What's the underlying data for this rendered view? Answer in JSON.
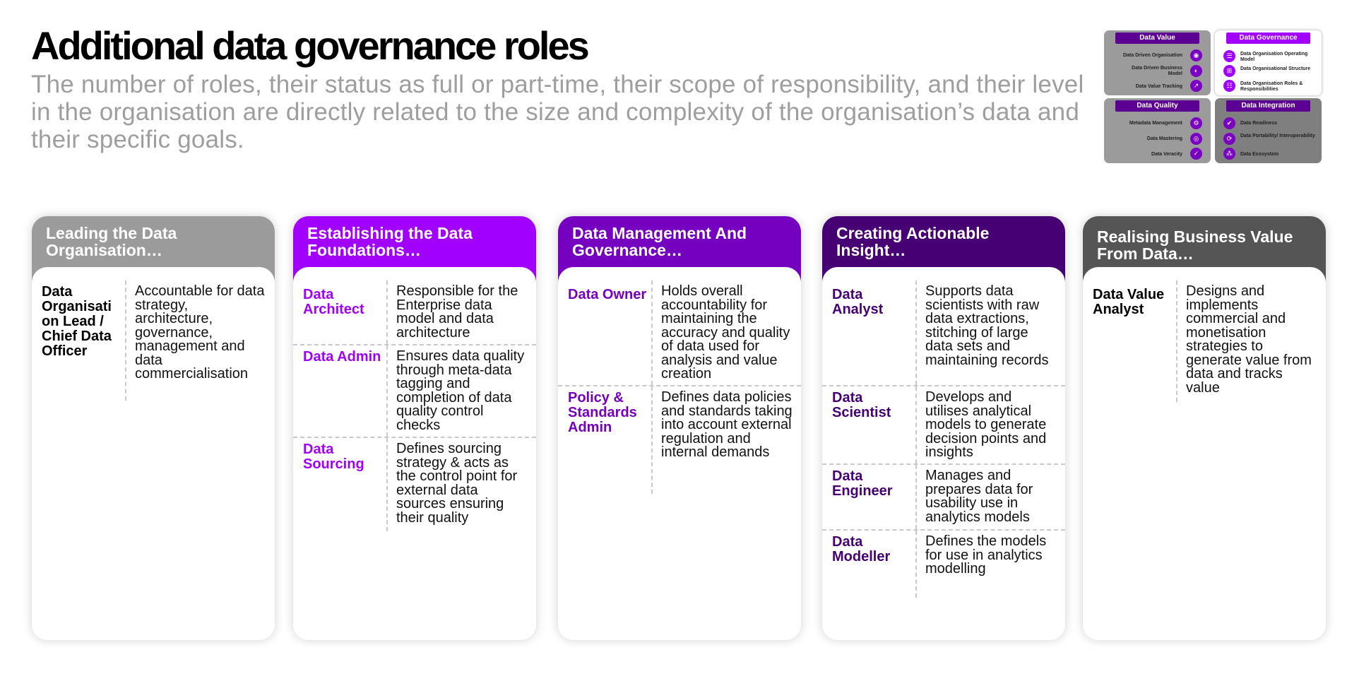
{
  "title": "Additional data governance roles",
  "subtitle": "The number of roles, their status as full or part-time, their scope of responsibility, and their level in the organisation are directly related to the size and complexity of the organisation’s data and their specific goals.",
  "colors": {
    "purple_bright": "#a100ff",
    "purple_mid": "#7500c0",
    "purple_dark": "#460073",
    "grey_light": "#9b9b9b",
    "grey_dark": "#555555"
  },
  "thumbnail": {
    "data_value": {
      "title": "Data Value",
      "items": [
        "Data Driven Organisation",
        "Data Driven Business Model",
        "Data Value Tracking"
      ]
    },
    "data_governance": {
      "title": "Data Governance",
      "items": [
        "Data Organisation Operating Model",
        "Data Organisational Structure",
        "Data Organisation Roles & Responsibilities"
      ]
    },
    "data_quality": {
      "title": "Data Quality",
      "items": [
        "Metadata Management",
        "Data Mastering",
        "Data Veracity"
      ]
    },
    "data_integration": {
      "title": "Data Integration",
      "items": [
        "Data Readiness",
        "Data Portability/ Interoperability",
        "Data Ecosystem"
      ]
    }
  },
  "columns": [
    {
      "header": "Leading the Data Organisation…",
      "roles": [
        {
          "name": "Data Organisati on Lead / Chief Data Officer",
          "desc": "Accountable for data strategy, architecture, governance, management and data commercialisation"
        }
      ]
    },
    {
      "header": "Establishing the Data Foundations…",
      "roles": [
        {
          "name": "Data Architect",
          "desc": "Responsible for the Enterprise data model and data architecture"
        },
        {
          "name": "Data Admin",
          "desc": "Ensures data quality through meta-data tagging and completion of data quality control checks"
        },
        {
          "name": "Data Sourcing",
          "desc": "Defines sourcing strategy & acts as the control point for external data sources ensuring their quality"
        }
      ]
    },
    {
      "header": "Data Management And Governance…",
      "roles": [
        {
          "name": "Data Owner",
          "desc": "Holds overall accountability for maintaining the accuracy and quality of data used for analysis and value creation"
        },
        {
          "name": "Policy & Standards Admin",
          "desc": "Defines data policies and standards taking into account external regulation and internal demands"
        }
      ]
    },
    {
      "header": "Creating Actionable Insight…",
      "roles": [
        {
          "name": "Data Analyst",
          "desc": "Supports data scientists with raw data extractions, stitching of large data sets and maintaining records"
        },
        {
          "name": "Data Scientist",
          "desc": "Develops and utilises analytical models to generate decision points and insights"
        },
        {
          "name": "Data Engineer",
          "desc": "Manages and prepares data for usability use in analytics models"
        },
        {
          "name": "Data Modeller",
          "desc": "Defines the models for use in analytics modelling"
        }
      ]
    },
    {
      "header": "Realising Business Value From Data…",
      "roles": [
        {
          "name": "Data Value Analyst",
          "desc": "Designs and implements commercial and monetisation strategies to generate value from data and tracks value"
        }
      ]
    }
  ]
}
